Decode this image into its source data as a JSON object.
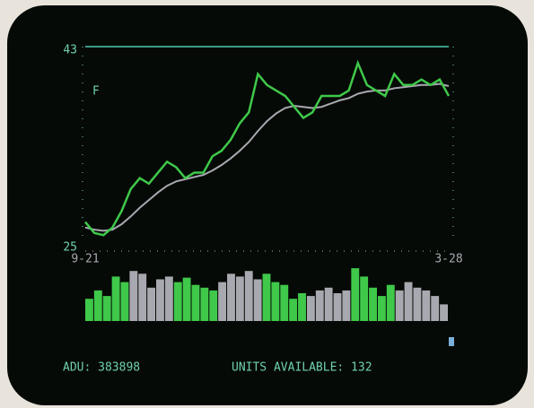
{
  "chart_data": [
    {
      "type": "line",
      "annotation": "F",
      "categories": [
        "9-21",
        null,
        null,
        null,
        null,
        null,
        null,
        null,
        null,
        null,
        null,
        null,
        null,
        null,
        null,
        null,
        null,
        null,
        null,
        null,
        null,
        null,
        null,
        null,
        null,
        null,
        null,
        null,
        null,
        null,
        null,
        null,
        null,
        null,
        null,
        null,
        null,
        null,
        null,
        null,
        "3-28"
      ],
      "series": [
        {
          "color": "#3fc84a",
          "values": [
            27,
            26,
            25.8,
            26.5,
            28,
            30,
            31,
            30.5,
            31.5,
            32.5,
            32,
            31,
            31.5,
            31.5,
            33,
            33.5,
            34.5,
            36,
            37,
            40.5,
            39.5,
            39,
            38.5,
            37.5,
            36.5,
            37,
            38.5,
            38.5,
            38.5,
            39,
            41.5,
            39.5,
            39,
            38.5,
            40.5,
            39.5,
            39.5,
            40,
            39.5,
            40,
            38.5
          ]
        },
        {
          "color": "#a8a8b0",
          "values": [
            26.5,
            26.3,
            26.2,
            26.3,
            26.8,
            27.5,
            28.3,
            29,
            29.7,
            30.3,
            30.7,
            30.9,
            31.1,
            31.3,
            31.7,
            32.2,
            32.8,
            33.5,
            34.3,
            35.3,
            36.2,
            36.9,
            37.4,
            37.6,
            37.5,
            37.4,
            37.5,
            37.8,
            38.1,
            38.3,
            38.7,
            38.9,
            39,
            39,
            39.2,
            39.3,
            39.4,
            39.5,
            39.5,
            39.6,
            39.4
          ]
        }
      ],
      "ylim": [
        25,
        43
      ],
      "yticks": [
        25,
        43
      ],
      "grid": true,
      "grid_color": "#4fc8b0"
    },
    {
      "type": "bar",
      "values": [
        40,
        55,
        45,
        80,
        70,
        90,
        85,
        60,
        75,
        80,
        70,
        78,
        65,
        60,
        55,
        70,
        85,
        80,
        90,
        75,
        85,
        70,
        65,
        40,
        50,
        45,
        55,
        60,
        50,
        55,
        95,
        80,
        60,
        45,
        65,
        55,
        70,
        60,
        55,
        45,
        30
      ],
      "colors": [
        "#3fc84a",
        "#3fc84a",
        "#3fc84a",
        "#3fc84a",
        "#3fc84a",
        "#a8a8b0",
        "#a8a8b0",
        "#a8a8b0",
        "#a8a8b0",
        "#a8a8b0",
        "#3fc84a",
        "#3fc84a",
        "#3fc84a",
        "#3fc84a",
        "#3fc84a",
        "#a8a8b0",
        "#a8a8b0",
        "#a8a8b0",
        "#a8a8b0",
        "#a8a8b0",
        "#3fc84a",
        "#3fc84a",
        "#3fc84a",
        "#3fc84a",
        "#3fc84a",
        "#a8a8b0",
        "#a8a8b0",
        "#a8a8b0",
        "#a8a8b0",
        "#a8a8b0",
        "#3fc84a",
        "#3fc84a",
        "#3fc84a",
        "#3fc84a",
        "#3fc84a",
        "#a8a8b0",
        "#a8a8b0",
        "#a8a8b0",
        "#a8a8b0",
        "#a8a8b0",
        "#a8a8b0"
      ],
      "ylim": [
        0,
        100
      ]
    }
  ],
  "status_bar": {
    "left": "ADU: 383898",
    "right": "UNITS AVAILABLE: 132"
  }
}
